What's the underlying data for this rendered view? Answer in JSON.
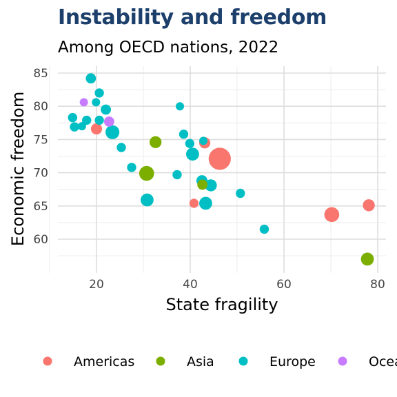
{
  "chart_data": {
    "type": "scatter",
    "title": "Instability and freedom",
    "subtitle": "Among OECD nations, 2022",
    "xlabel": "State fragility",
    "ylabel": "Economic freedom",
    "xlim": [
      12,
      80
    ],
    "ylim": [
      56,
      86
    ],
    "x_ticks": [
      "20",
      "40",
      "60",
      "80"
    ],
    "y_ticks": [
      "60",
      "65",
      "70",
      "75",
      "80",
      "85"
    ],
    "grid": true,
    "legend_position": "bottom",
    "legend_title": "",
    "colors": {
      "Americas": "#F8766D",
      "Asia": "#7CAE00",
      "Europe": "#00BFC4",
      "Oceania": "#C77CFF"
    },
    "series": [
      {
        "name": "Americas",
        "points": [
          {
            "x": 20.0,
            "y": 76.6,
            "size": 3
          },
          {
            "x": 43.1,
            "y": 74.5,
            "size": 3
          },
          {
            "x": 40.8,
            "y": 65.4,
            "size": 2
          },
          {
            "x": 46.3,
            "y": 72.1,
            "size": 9
          },
          {
            "x": 70.2,
            "y": 63.7,
            "size": 5
          },
          {
            "x": 78.1,
            "y": 65.1,
            "size": 3.5
          }
        ]
      },
      {
        "name": "Asia",
        "points": [
          {
            "x": 32.6,
            "y": 74.6,
            "size": 3.5
          },
          {
            "x": 30.7,
            "y": 69.9,
            "size": 5
          },
          {
            "x": 42.6,
            "y": 68.2,
            "size": 2.5
          },
          {
            "x": 77.8,
            "y": 57.0,
            "size": 4
          }
        ]
      },
      {
        "name": "Europe",
        "points": [
          {
            "x": 18.8,
            "y": 84.2,
            "size": 2.5
          },
          {
            "x": 20.6,
            "y": 82.0,
            "size": 2
          },
          {
            "x": 19.9,
            "y": 80.6,
            "size": 1.5
          },
          {
            "x": 22.0,
            "y": 79.5,
            "size": 2.5
          },
          {
            "x": 14.9,
            "y": 78.3,
            "size": 2
          },
          {
            "x": 17.9,
            "y": 77.9,
            "size": 2
          },
          {
            "x": 20.6,
            "y": 77.9,
            "size": 2
          },
          {
            "x": 15.3,
            "y": 76.9,
            "size": 2
          },
          {
            "x": 16.9,
            "y": 77.0,
            "size": 1.5
          },
          {
            "x": 23.4,
            "y": 76.1,
            "size": 4.5
          },
          {
            "x": 25.3,
            "y": 73.8,
            "size": 2
          },
          {
            "x": 27.5,
            "y": 70.8,
            "size": 2
          },
          {
            "x": 37.8,
            "y": 80.0,
            "size": 1.5
          },
          {
            "x": 38.6,
            "y": 75.8,
            "size": 2
          },
          {
            "x": 39.9,
            "y": 74.4,
            "size": 2
          },
          {
            "x": 40.5,
            "y": 72.8,
            "size": 4
          },
          {
            "x": 42.8,
            "y": 74.8,
            "size": 1.5
          },
          {
            "x": 37.2,
            "y": 69.7,
            "size": 2
          },
          {
            "x": 42.5,
            "y": 68.8,
            "size": 3
          },
          {
            "x": 44.4,
            "y": 68.1,
            "size": 3.5
          },
          {
            "x": 30.8,
            "y": 65.9,
            "size": 4
          },
          {
            "x": 43.3,
            "y": 65.4,
            "size": 4
          },
          {
            "x": 50.7,
            "y": 66.9,
            "size": 2
          },
          {
            "x": 55.8,
            "y": 61.5,
            "size": 2
          }
        ]
      },
      {
        "name": "Oceania",
        "points": [
          {
            "x": 17.3,
            "y": 80.6,
            "size": 1.5
          },
          {
            "x": 22.7,
            "y": 77.7,
            "size": 2.5
          }
        ]
      }
    ]
  }
}
